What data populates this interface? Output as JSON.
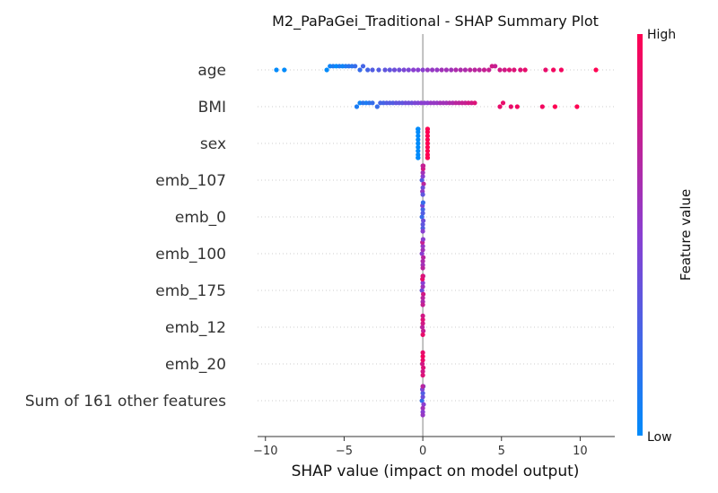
{
  "chart_data": {
    "type": "scatter",
    "subtype": "beeswarm",
    "title": "M2_PaPaGei_Traditional - SHAP Summary Plot",
    "xlabel": "SHAP value (impact on model output)",
    "ylabel": "",
    "xlim": [
      -10.5,
      12.2
    ],
    "xticks": [
      -10,
      -5,
      0,
      5,
      10
    ],
    "zero_line": 0,
    "grid": false,
    "colorbar": {
      "label": "Feature value",
      "high": "High",
      "low": "Low",
      "low_color": "#008bfb",
      "high_color": "#ff0052"
    },
    "features": [
      {
        "name": "age",
        "points": [
          [
            -9.3,
            0.0
          ],
          [
            -8.8,
            0.0
          ],
          [
            -6.1,
            0.0
          ],
          [
            -5.9,
            0.05
          ],
          [
            -5.7,
            0.1
          ],
          [
            -5.5,
            0.0
          ],
          [
            -5.3,
            0.1
          ],
          [
            -5.1,
            0.05
          ],
          [
            -4.9,
            0.1
          ],
          [
            -4.7,
            0.15
          ],
          [
            -4.5,
            0.15
          ],
          [
            -4.3,
            0.2
          ],
          [
            -4.0,
            0.2
          ],
          [
            -3.8,
            0.25
          ],
          [
            -3.5,
            0.25
          ],
          [
            -3.2,
            0.3
          ],
          [
            -2.8,
            0.3
          ],
          [
            -2.4,
            0.35
          ],
          [
            -2.1,
            0.35
          ],
          [
            -1.8,
            0.4
          ],
          [
            -1.5,
            0.4
          ],
          [
            -1.2,
            0.45
          ],
          [
            -0.9,
            0.45
          ],
          [
            -0.6,
            0.5
          ],
          [
            -0.3,
            0.5
          ],
          [
            0.0,
            0.5
          ],
          [
            0.3,
            0.55
          ],
          [
            0.6,
            0.55
          ],
          [
            0.9,
            0.55
          ],
          [
            1.2,
            0.6
          ],
          [
            1.5,
            0.6
          ],
          [
            1.8,
            0.6
          ],
          [
            2.1,
            0.65
          ],
          [
            2.4,
            0.65
          ],
          [
            2.7,
            0.65
          ],
          [
            3.0,
            0.7
          ],
          [
            3.3,
            0.7
          ],
          [
            3.6,
            0.7
          ],
          [
            3.9,
            0.75
          ],
          [
            4.2,
            0.75
          ],
          [
            4.4,
            0.8
          ],
          [
            4.6,
            0.75
          ],
          [
            4.9,
            0.8
          ],
          [
            5.2,
            0.8
          ],
          [
            5.5,
            0.85
          ],
          [
            5.8,
            0.85
          ],
          [
            6.2,
            0.85
          ],
          [
            6.5,
            0.9
          ],
          [
            7.8,
            0.9
          ],
          [
            8.3,
            0.95
          ],
          [
            8.8,
            0.95
          ],
          [
            11.0,
            1.0
          ]
        ]
      },
      {
        "name": "BMI",
        "points": [
          [
            -4.2,
            0.1
          ],
          [
            -4.0,
            0.05
          ],
          [
            -3.8,
            0.15
          ],
          [
            -3.6,
            0.1
          ],
          [
            -3.4,
            0.15
          ],
          [
            -3.2,
            0.2
          ],
          [
            -2.9,
            0.2
          ],
          [
            -2.7,
            0.25
          ],
          [
            -2.5,
            0.25
          ],
          [
            -2.3,
            0.3
          ],
          [
            -2.1,
            0.3
          ],
          [
            -1.9,
            0.3
          ],
          [
            -1.7,
            0.35
          ],
          [
            -1.5,
            0.35
          ],
          [
            -1.3,
            0.35
          ],
          [
            -1.1,
            0.4
          ],
          [
            -0.9,
            0.4
          ],
          [
            -0.7,
            0.4
          ],
          [
            -0.5,
            0.45
          ],
          [
            -0.3,
            0.45
          ],
          [
            -0.1,
            0.5
          ],
          [
            0.1,
            0.5
          ],
          [
            0.3,
            0.5
          ],
          [
            0.5,
            0.55
          ],
          [
            0.7,
            0.55
          ],
          [
            0.9,
            0.55
          ],
          [
            1.1,
            0.6
          ],
          [
            1.3,
            0.6
          ],
          [
            1.5,
            0.6
          ],
          [
            1.7,
            0.65
          ],
          [
            1.9,
            0.65
          ],
          [
            2.1,
            0.7
          ],
          [
            2.3,
            0.7
          ],
          [
            2.5,
            0.75
          ],
          [
            2.7,
            0.75
          ],
          [
            2.9,
            0.8
          ],
          [
            3.1,
            0.8
          ],
          [
            3.3,
            0.85
          ],
          [
            4.9,
            0.9
          ],
          [
            5.1,
            0.9
          ],
          [
            5.6,
            0.9
          ],
          [
            6.0,
            0.95
          ],
          [
            7.6,
            0.95
          ],
          [
            8.4,
            1.0
          ],
          [
            9.8,
            1.0
          ]
        ]
      },
      {
        "name": "sex",
        "points": [
          [
            -0.3,
            0.0
          ],
          [
            -0.3,
            0.0
          ],
          [
            -0.3,
            0.0
          ],
          [
            -0.3,
            0.0
          ],
          [
            -0.3,
            0.0
          ],
          [
            -0.3,
            0.0
          ],
          [
            -0.3,
            0.0
          ],
          [
            -0.3,
            0.0
          ],
          [
            -0.3,
            0.0
          ],
          [
            -0.3,
            0.0
          ],
          [
            -0.3,
            0.0
          ],
          [
            -0.3,
            0.0
          ],
          [
            0.3,
            1.0
          ],
          [
            0.3,
            1.0
          ],
          [
            0.3,
            1.0
          ],
          [
            0.3,
            1.0
          ],
          [
            0.3,
            1.0
          ],
          [
            0.3,
            1.0
          ],
          [
            0.3,
            1.0
          ],
          [
            0.3,
            1.0
          ],
          [
            0.3,
            1.0
          ],
          [
            0.3,
            1.0
          ],
          [
            0.3,
            1.0
          ]
        ]
      },
      {
        "name": "emb_107",
        "points": [
          [
            -0.05,
            0.3
          ],
          [
            0.0,
            0.5
          ],
          [
            0.05,
            0.7
          ],
          [
            0.0,
            0.6
          ],
          [
            0.0,
            0.4
          ],
          [
            0.02,
            0.8
          ],
          [
            -0.02,
            0.55
          ],
          [
            0.0,
            0.65
          ],
          [
            0.0,
            0.35
          ],
          [
            0.03,
            0.75
          ]
        ]
      },
      {
        "name": "emb_0",
        "points": [
          [
            -0.05,
            0.2
          ],
          [
            0.0,
            0.3
          ],
          [
            0.03,
            0.4
          ],
          [
            0.0,
            0.25
          ],
          [
            0.0,
            0.35
          ],
          [
            -0.02,
            0.45
          ],
          [
            0.0,
            0.3
          ],
          [
            0.02,
            0.2
          ],
          [
            0.0,
            0.5
          ]
        ]
      },
      {
        "name": "emb_100",
        "points": [
          [
            -0.05,
            0.5
          ],
          [
            0.0,
            0.6
          ],
          [
            0.03,
            0.7
          ],
          [
            0.0,
            0.55
          ],
          [
            0.0,
            0.65
          ],
          [
            -0.02,
            0.75
          ],
          [
            0.0,
            0.6
          ],
          [
            0.02,
            0.5
          ],
          [
            0.0,
            0.7
          ]
        ]
      },
      {
        "name": "emb_175",
        "points": [
          [
            -0.05,
            0.4
          ],
          [
            0.0,
            0.6
          ],
          [
            0.03,
            0.8
          ],
          [
            0.0,
            0.5
          ],
          [
            0.0,
            0.7
          ],
          [
            -0.02,
            0.9
          ],
          [
            0.0,
            0.65
          ],
          [
            0.02,
            0.55
          ],
          [
            0.0,
            0.75
          ],
          [
            0.0,
            0.85
          ]
        ]
      },
      {
        "name": "emb_12",
        "points": [
          [
            -0.03,
            0.7
          ],
          [
            0.0,
            0.8
          ],
          [
            0.03,
            0.75
          ],
          [
            0.0,
            0.85
          ],
          [
            0.0,
            0.9
          ],
          [
            0.0,
            0.8
          ]
        ]
      },
      {
        "name": "emb_20",
        "points": [
          [
            -0.03,
            0.8
          ],
          [
            0.0,
            0.9
          ],
          [
            0.03,
            0.85
          ],
          [
            0.0,
            0.95
          ],
          [
            0.0,
            0.8
          ],
          [
            0.0,
            0.9
          ],
          [
            0.0,
            0.85
          ]
        ]
      },
      {
        "name": "Sum of 161 other features",
        "points": [
          [
            -0.05,
            0.2
          ],
          [
            0.0,
            0.4
          ],
          [
            0.05,
            0.5
          ],
          [
            0.0,
            0.3
          ],
          [
            0.0,
            0.6
          ],
          [
            -0.03,
            0.45
          ],
          [
            0.0,
            0.5
          ],
          [
            0.03,
            0.35
          ],
          [
            0.0,
            0.55
          ],
          [
            0.0,
            0.7
          ]
        ]
      }
    ]
  }
}
